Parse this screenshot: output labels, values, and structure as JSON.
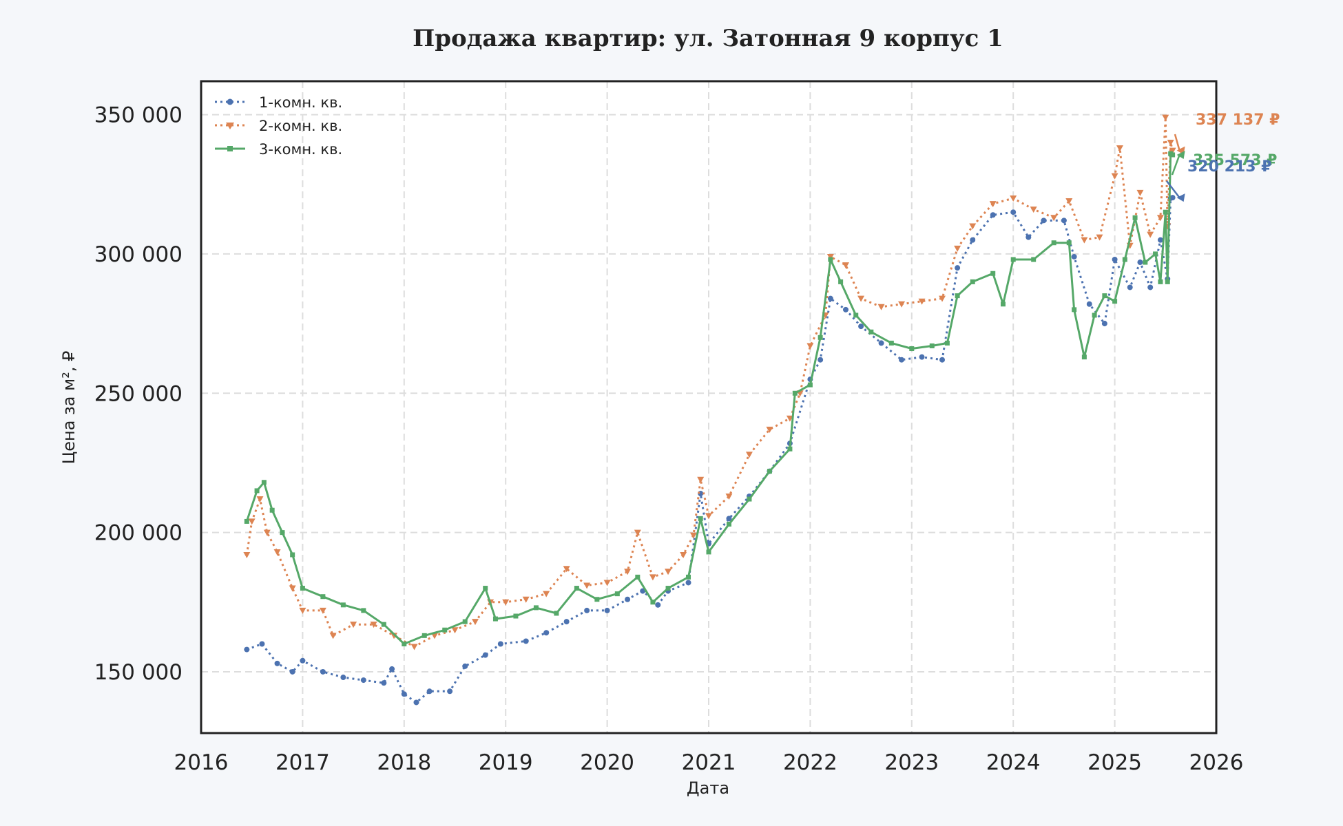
{
  "chart_data": {
    "type": "line",
    "title": "Продажа квартир: ул. Затонная 9 корпус 1",
    "xlabel": "Дата",
    "ylabel": "Цена за м², ₽",
    "xlim": [
      2016,
      2026
    ],
    "ylim": [
      128000,
      362000
    ],
    "x_ticks": [
      2016,
      2017,
      2018,
      2019,
      2020,
      2021,
      2022,
      2023,
      2024,
      2025,
      2026
    ],
    "x_tick_labels": [
      "2016",
      "2017",
      "2018",
      "2019",
      "2020",
      "2021",
      "2022",
      "2023",
      "2024",
      "2025",
      "2026"
    ],
    "y_ticks": [
      150000,
      200000,
      250000,
      300000,
      350000
    ],
    "y_tick_labels": [
      "150 000",
      "200 000",
      "250 000",
      "300 000",
      "350 000"
    ],
    "grid": true,
    "legend_position": "top-left",
    "series": [
      {
        "name": "1-комн. кв.",
        "color": "#4c72b0",
        "style": "dotted-circle",
        "points": [
          [
            2016.45,
            158000
          ],
          [
            2016.6,
            160000
          ],
          [
            2016.75,
            153000
          ],
          [
            2016.9,
            150000
          ],
          [
            2017.0,
            154000
          ],
          [
            2017.2,
            150000
          ],
          [
            2017.4,
            148000
          ],
          [
            2017.6,
            147000
          ],
          [
            2017.8,
            146000
          ],
          [
            2017.88,
            151000
          ],
          [
            2018.0,
            142000
          ],
          [
            2018.12,
            139000
          ],
          [
            2018.25,
            143000
          ],
          [
            2018.45,
            143000
          ],
          [
            2018.6,
            152000
          ],
          [
            2018.8,
            156000
          ],
          [
            2018.95,
            160000
          ],
          [
            2019.2,
            161000
          ],
          [
            2019.4,
            164000
          ],
          [
            2019.6,
            168000
          ],
          [
            2019.8,
            172000
          ],
          [
            2020.0,
            172000
          ],
          [
            2020.2,
            176000
          ],
          [
            2020.35,
            179000
          ],
          [
            2020.5,
            174000
          ],
          [
            2020.6,
            179000
          ],
          [
            2020.8,
            182000
          ],
          [
            2020.92,
            214000
          ],
          [
            2021.0,
            196000
          ],
          [
            2021.2,
            205000
          ],
          [
            2021.4,
            213000
          ],
          [
            2021.6,
            222000
          ],
          [
            2021.8,
            232000
          ],
          [
            2022.0,
            255000
          ],
          [
            2022.1,
            262000
          ],
          [
            2022.2,
            284000
          ],
          [
            2022.35,
            280000
          ],
          [
            2022.5,
            274000
          ],
          [
            2022.7,
            268000
          ],
          [
            2022.9,
            262000
          ],
          [
            2023.1,
            263000
          ],
          [
            2023.3,
            262000
          ],
          [
            2023.45,
            295000
          ],
          [
            2023.6,
            305000
          ],
          [
            2023.8,
            314000
          ],
          [
            2024.0,
            315000
          ],
          [
            2024.15,
            306000
          ],
          [
            2024.3,
            312000
          ],
          [
            2024.5,
            312000
          ],
          [
            2024.6,
            299000
          ],
          [
            2024.75,
            282000
          ],
          [
            2024.9,
            275000
          ],
          [
            2025.0,
            298000
          ],
          [
            2025.15,
            288000
          ],
          [
            2025.25,
            297000
          ],
          [
            2025.35,
            288000
          ],
          [
            2025.45,
            305000
          ],
          [
            2025.52,
            291000
          ],
          [
            2025.55,
            320000
          ],
          [
            2025.57,
            320213
          ]
        ]
      },
      {
        "name": "2-комн. кв.",
        "color": "#dd8452",
        "style": "dotted-triangle",
        "points": [
          [
            2016.45,
            192000
          ],
          [
            2016.5,
            204000
          ],
          [
            2016.58,
            212000
          ],
          [
            2016.65,
            200000
          ],
          [
            2016.75,
            193000
          ],
          [
            2016.9,
            180000
          ],
          [
            2017.0,
            172000
          ],
          [
            2017.2,
            172000
          ],
          [
            2017.3,
            163000
          ],
          [
            2017.5,
            167000
          ],
          [
            2017.7,
            167000
          ],
          [
            2017.9,
            163000
          ],
          [
            2018.1,
            159000
          ],
          [
            2018.3,
            163000
          ],
          [
            2018.5,
            165000
          ],
          [
            2018.7,
            168000
          ],
          [
            2018.85,
            175000
          ],
          [
            2019.0,
            175000
          ],
          [
            2019.2,
            176000
          ],
          [
            2019.4,
            178000
          ],
          [
            2019.6,
            187000
          ],
          [
            2019.8,
            181000
          ],
          [
            2020.0,
            182000
          ],
          [
            2020.2,
            186000
          ],
          [
            2020.3,
            200000
          ],
          [
            2020.45,
            184000
          ],
          [
            2020.6,
            186000
          ],
          [
            2020.75,
            192000
          ],
          [
            2020.85,
            199000
          ],
          [
            2020.92,
            219000
          ],
          [
            2021.0,
            206000
          ],
          [
            2021.2,
            213000
          ],
          [
            2021.4,
            228000
          ],
          [
            2021.6,
            237000
          ],
          [
            2021.8,
            241000
          ],
          [
            2021.9,
            250000
          ],
          [
            2022.0,
            267000
          ],
          [
            2022.15,
            278000
          ],
          [
            2022.2,
            299000
          ],
          [
            2022.35,
            296000
          ],
          [
            2022.5,
            284000
          ],
          [
            2022.7,
            281000
          ],
          [
            2022.9,
            282000
          ],
          [
            2023.1,
            283000
          ],
          [
            2023.3,
            284000
          ],
          [
            2023.45,
            302000
          ],
          [
            2023.6,
            310000
          ],
          [
            2023.8,
            318000
          ],
          [
            2024.0,
            320000
          ],
          [
            2024.2,
            316000
          ],
          [
            2024.4,
            313000
          ],
          [
            2024.55,
            319000
          ],
          [
            2024.7,
            305000
          ],
          [
            2024.85,
            306000
          ],
          [
            2025.0,
            328000
          ],
          [
            2025.05,
            338000
          ],
          [
            2025.15,
            303000
          ],
          [
            2025.25,
            322000
          ],
          [
            2025.35,
            307000
          ],
          [
            2025.45,
            313000
          ],
          [
            2025.5,
            349000
          ],
          [
            2025.52,
            310000
          ],
          [
            2025.55,
            340000
          ],
          [
            2025.57,
            337137
          ]
        ]
      },
      {
        "name": "3-комн. кв.",
        "color": "#55a868",
        "style": "solid-square",
        "points": [
          [
            2016.45,
            204000
          ],
          [
            2016.55,
            215000
          ],
          [
            2016.62,
            218000
          ],
          [
            2016.7,
            208000
          ],
          [
            2016.8,
            200000
          ],
          [
            2016.9,
            192000
          ],
          [
            2017.0,
            180000
          ],
          [
            2017.2,
            177000
          ],
          [
            2017.4,
            174000
          ],
          [
            2017.6,
            172000
          ],
          [
            2017.8,
            167000
          ],
          [
            2018.0,
            160000
          ],
          [
            2018.2,
            163000
          ],
          [
            2018.4,
            165000
          ],
          [
            2018.6,
            168000
          ],
          [
            2018.8,
            180000
          ],
          [
            2018.9,
            169000
          ],
          [
            2019.1,
            170000
          ],
          [
            2019.3,
            173000
          ],
          [
            2019.5,
            171000
          ],
          [
            2019.7,
            180000
          ],
          [
            2019.9,
            176000
          ],
          [
            2020.1,
            178000
          ],
          [
            2020.3,
            184000
          ],
          [
            2020.45,
            175000
          ],
          [
            2020.6,
            180000
          ],
          [
            2020.8,
            184000
          ],
          [
            2020.92,
            205000
          ],
          [
            2021.0,
            193000
          ],
          [
            2021.2,
            203000
          ],
          [
            2021.4,
            212000
          ],
          [
            2021.6,
            222000
          ],
          [
            2021.8,
            230000
          ],
          [
            2021.85,
            250000
          ],
          [
            2022.0,
            253000
          ],
          [
            2022.1,
            270000
          ],
          [
            2022.2,
            298000
          ],
          [
            2022.3,
            290000
          ],
          [
            2022.45,
            278000
          ],
          [
            2022.6,
            272000
          ],
          [
            2022.8,
            268000
          ],
          [
            2023.0,
            266000
          ],
          [
            2023.2,
            267000
          ],
          [
            2023.35,
            268000
          ],
          [
            2023.45,
            285000
          ],
          [
            2023.6,
            290000
          ],
          [
            2023.8,
            293000
          ],
          [
            2023.9,
            282000
          ],
          [
            2024.0,
            298000
          ],
          [
            2024.2,
            298000
          ],
          [
            2024.4,
            304000
          ],
          [
            2024.55,
            304000
          ],
          [
            2024.6,
            280000
          ],
          [
            2024.7,
            263000
          ],
          [
            2024.8,
            278000
          ],
          [
            2024.9,
            285000
          ],
          [
            2025.0,
            283000
          ],
          [
            2025.1,
            298000
          ],
          [
            2025.2,
            313000
          ],
          [
            2025.3,
            297000
          ],
          [
            2025.4,
            300000
          ],
          [
            2025.45,
            290000
          ],
          [
            2025.5,
            315000
          ],
          [
            2025.52,
            290000
          ],
          [
            2025.55,
            336000
          ],
          [
            2025.57,
            335573
          ]
        ]
      }
    ],
    "annotations": [
      {
        "text": "337 137 ₽",
        "series": "2-комн. кв.",
        "x": 2025.57,
        "y": 337137,
        "color": "#dd8452"
      },
      {
        "text": "335 573 ₽",
        "series": "3-комн. кв.",
        "x": 2025.57,
        "y": 335573,
        "color": "#55a868"
      },
      {
        "text": "320 213 ₽",
        "series": "1-комн. кв.",
        "x": 2025.57,
        "y": 320213,
        "color": "#4c72b0"
      }
    ]
  }
}
